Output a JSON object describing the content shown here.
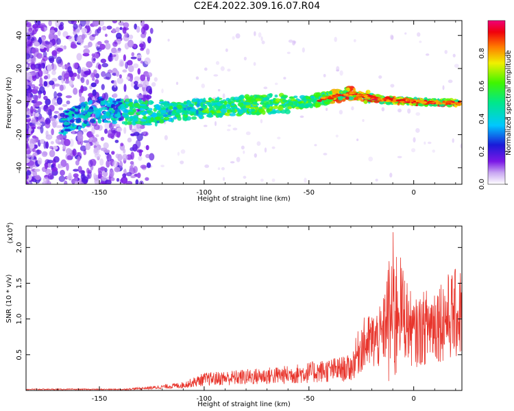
{
  "title": "C2E4.2022.309.16.07.R04",
  "chart_data": [
    {
      "type": "heatmap",
      "xlabel": "Height of straight line (km)",
      "ylabel": "Frequency (Hz)",
      "xlim": [
        -185,
        23
      ],
      "ylim": [
        -50,
        49
      ],
      "x_ticks": [
        -150,
        -100,
        -50,
        0
      ],
      "y_ticks": [
        -40,
        -20,
        0,
        20,
        40
      ],
      "colorbar": {
        "label": "Normalized spectral amplitude",
        "range": [
          0.0,
          1.0
        ],
        "ticks": [
          "0.0",
          "0.2",
          "0.4",
          "0.6",
          "0.8"
        ]
      },
      "ridge": {
        "description_points": [
          {
            "x": -168,
            "y": -13
          },
          {
            "x": -150,
            "y": -5
          },
          {
            "x": -125,
            "y": -7
          },
          {
            "x": -100,
            "y": -4
          },
          {
            "x": -75,
            "y": -2
          },
          {
            "x": -50,
            "y": 0
          },
          {
            "x": -30,
            "y": 5
          },
          {
            "x": -15,
            "y": 1
          },
          {
            "x": 0,
            "y": 0
          },
          {
            "x": 22,
            "y": -1
          }
        ]
      }
    },
    {
      "type": "line",
      "xlabel": "Height of straight line (km)",
      "ylabel": "SNR (10 * v/v)",
      "y_scale_label": "(x10",
      "y_scale_exp": "4",
      "y_scale_close": ")",
      "xlim": [
        -185,
        23
      ],
      "ylim": [
        0,
        2.3
      ],
      "x_ticks": [
        -150,
        -100,
        -50,
        0
      ],
      "y_ticks": [
        "0.5",
        "1.0",
        "1.5",
        "2.0"
      ],
      "series_color": "#e8352c",
      "envelope": [
        {
          "x": -185,
          "y": 0.02
        },
        {
          "x": -140,
          "y": 0.02
        },
        {
          "x": -125,
          "y": 0.06
        },
        {
          "x": -110,
          "y": 0.12
        },
        {
          "x": -100,
          "y": 0.25
        },
        {
          "x": -80,
          "y": 0.3
        },
        {
          "x": -60,
          "y": 0.35
        },
        {
          "x": -40,
          "y": 0.45
        },
        {
          "x": -30,
          "y": 0.5
        },
        {
          "x": -25,
          "y": 1.0
        },
        {
          "x": -15,
          "y": 1.2
        },
        {
          "x": -10,
          "y": 2.25
        },
        {
          "x": 0,
          "y": 1.25
        },
        {
          "x": 10,
          "y": 1.55
        },
        {
          "x": 23,
          "y": 1.75
        }
      ]
    }
  ]
}
